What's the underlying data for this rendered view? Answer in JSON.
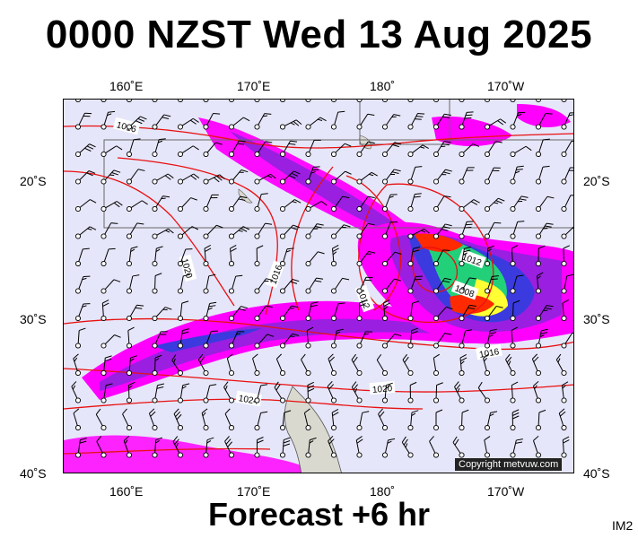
{
  "header": {
    "title": "0000 NZST Wed 13 Aug 2025"
  },
  "footer": {
    "forecast": "Forecast +6 hr",
    "code": "IM2"
  },
  "axes": {
    "top_lon": [
      "160˚E",
      "170˚E",
      "180˚",
      "170˚W"
    ],
    "bottom_lon": [
      "160˚E",
      "170˚E",
      "180˚",
      "170˚W"
    ],
    "left_lat": [
      "20˚S",
      "30˚S",
      "40˚S"
    ],
    "right_lat": [
      "20˚S",
      "30˚S",
      "40˚S"
    ]
  },
  "isobars": {
    "labels": [
      "1016",
      "1020",
      "1016",
      "1012",
      "1012",
      "1008",
      "1016",
      "1020",
      "1024"
    ]
  },
  "colors": {
    "ocean": "#e6e6fa",
    "land": "#d9d9d0",
    "isobar": "#e81010",
    "rain_light": "#ff00ff",
    "rain_mod": "#9a1fe0",
    "rain_heavy": "#3a3adf",
    "rain_green": "#23d07a",
    "rain_yellow": "#ffff33",
    "rain_red": "#ff2a00"
  },
  "copyright": "Copyright metvuw.com"
}
